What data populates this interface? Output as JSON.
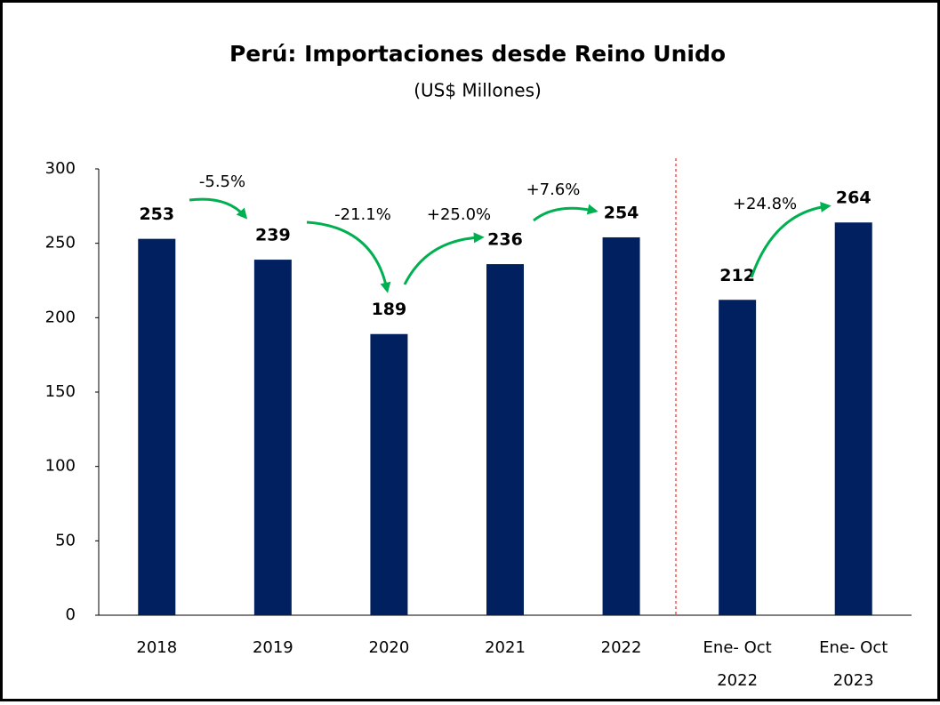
{
  "chart_data": {
    "type": "bar",
    "title": "Perú: Importaciones desde Reino Unido",
    "subtitle": "(US$ Millones)",
    "categories": [
      "2018",
      "2019",
      "2020",
      "2021",
      "2022",
      [
        "Ene- Oct",
        "2022"
      ],
      [
        "Ene- Oct",
        "2023"
      ]
    ],
    "values": [
      253,
      239,
      189,
      236,
      254,
      212,
      264
    ],
    "color": "#002060",
    "ylim": [
      0,
      300
    ],
    "yticks": [
      0,
      50,
      100,
      150,
      200,
      250,
      300
    ],
    "annotations": [
      "-5.5%",
      "-21.1%",
      "+25.0%",
      "+7.6%",
      "+24.8%"
    ]
  }
}
